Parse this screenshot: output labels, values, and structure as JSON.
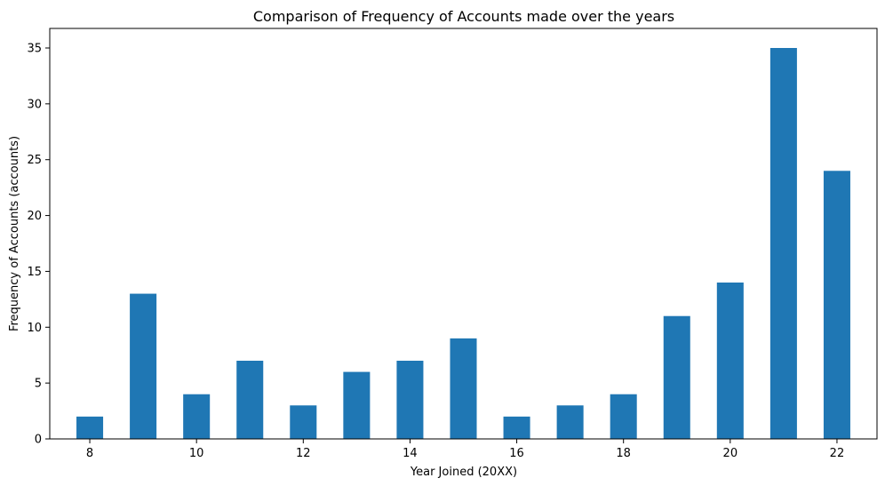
{
  "chart_data": {
    "type": "bar",
    "title": "Comparison of Frequency of Accounts made over the years",
    "xlabel": "Year Joined (20XX)",
    "ylabel": "Frequency of Accounts (accounts)",
    "categories": [
      8,
      9,
      10,
      11,
      12,
      13,
      14,
      15,
      16,
      17,
      18,
      19,
      20,
      21,
      22
    ],
    "values": [
      2,
      13,
      4,
      7,
      3,
      6,
      7,
      9,
      2,
      3,
      4,
      11,
      14,
      35,
      24
    ],
    "xlim": [
      7.25,
      22.75
    ],
    "ylim": [
      0,
      36.75
    ],
    "xticks": [
      8,
      10,
      12,
      14,
      16,
      18,
      20,
      22
    ],
    "yticks": [
      0,
      5,
      10,
      15,
      20,
      25,
      30,
      35
    ],
    "bar_width": 0.5,
    "bar_color": "#1f77b4",
    "grid": false,
    "legend": "none"
  }
}
